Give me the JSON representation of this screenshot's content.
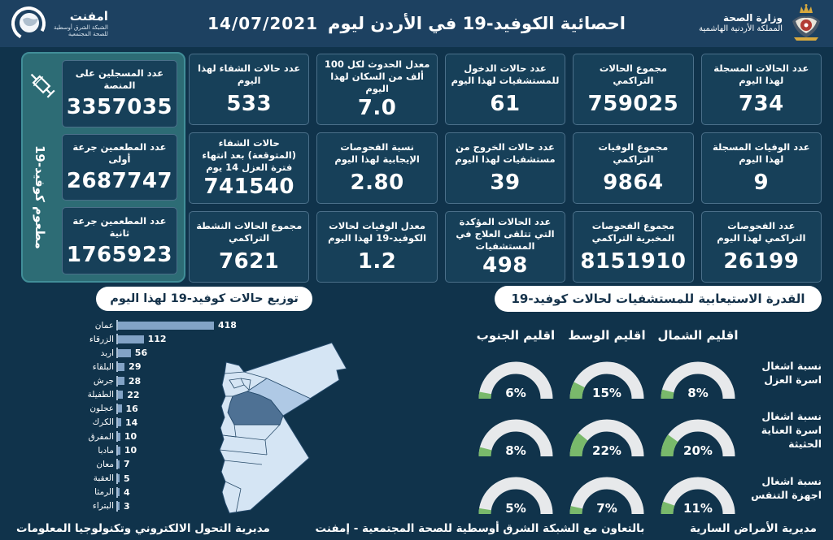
{
  "header": {
    "title": "احصائية الكوفيد-19 في الأردن ليوم",
    "date": "14/07/2021",
    "logo": {
      "name": "امفنت",
      "subtitle1": "الشبكة الشرق أوسطية",
      "subtitle2": "للصحة المجتمعية"
    },
    "ministry": {
      "line1": "وزارة الصحة",
      "line2": "المملكة الأردنية الهاشمية"
    }
  },
  "stats": [
    {
      "label": "عدد الحالات المسجلة لهذا اليوم",
      "value": "734"
    },
    {
      "label": "مجموع الحالات التراكمي",
      "value": "759025"
    },
    {
      "label": "عدد حالات الدخول للمستشفيات لهذا اليوم",
      "value": "61"
    },
    {
      "label": "معدل الحدوث لكل 100 ألف من السكان لهذا اليوم",
      "value": "7.0"
    },
    {
      "label": "عدد حالات الشفاء لهذا اليوم",
      "value": "533"
    },
    {
      "label": "عدد الوفيات المسجلة لهذا اليوم",
      "value": "9"
    },
    {
      "label": "مجموع الوفيات التراكمي",
      "value": "9864"
    },
    {
      "label": "عدد حالات الخروج من مستشفيات لهذا اليوم",
      "value": "39"
    },
    {
      "label": "نسبة الفحوصات الإيجابية لهذا اليوم",
      "value": "2.80"
    },
    {
      "label": "حالات الشفاء (المتوقعة) بعد انتهاء فترة العزل 14 يوم",
      "value": "741540"
    },
    {
      "label": "عدد الفحوصات التراكمي لهذا اليوم",
      "value": "26199"
    },
    {
      "label": "مجموع الفحوصات المخبرية التراكمي",
      "value": "8151910"
    },
    {
      "label": "عدد الحالات المؤكدة التي تتلقى العلاج في المستشفيات",
      "value": "498"
    },
    {
      "label": "معدل الوفيات لحالات الكوفيد-19 لهذا اليوم",
      "value": "1.2"
    },
    {
      "label": "مجموع الحالات النشطة التراكمي",
      "value": "7621"
    }
  ],
  "vaccination": {
    "side_label": "مطعوم كوفيد-19",
    "cards": [
      {
        "label": "عدد المسجلين على المنصة",
        "value": "3357035"
      },
      {
        "label": "عدد المطعمين جرعة أولى",
        "value": "2687747"
      },
      {
        "label": "عدد المطعمين جرعة ثانية",
        "value": "1765923"
      }
    ]
  },
  "chart_data": [
    {
      "type": "bar",
      "orientation": "horizontal",
      "title": "توزيع حالات كوفيد-19 لهذا اليوم",
      "categories": [
        "عمان",
        "الزرقاء",
        "اربد",
        "البلقاء",
        "جرش",
        "الطفيلة",
        "عجلون",
        "الكرك",
        "المفرق",
        "مادبا",
        "معان",
        "العقبة",
        "الرمثا",
        "البتراء"
      ],
      "values": [
        418,
        112,
        56,
        29,
        28,
        22,
        16,
        14,
        10,
        10,
        7,
        5,
        4,
        3
      ],
      "xlim": [
        0,
        418
      ],
      "bar_color": "#82a3c6"
    },
    {
      "type": "gauge",
      "title": "القدرة الاستيعابية للمستشفيات لحالات كوفيد-19",
      "unit": "%",
      "columns": [
        "اقليم الشمال",
        "اقليم الوسط",
        "اقليم الجنوب"
      ],
      "rows": [
        {
          "label": "نسبة اشغال اسرة العزل",
          "values": [
            8,
            15,
            6
          ]
        },
        {
          "label": "نسبة اشغال اسرة العناية الحثيثة",
          "values": [
            20,
            22,
            8
          ]
        },
        {
          "label": "نسبة اشغال اجهزة التنفس",
          "values": [
            11,
            7,
            5
          ]
        }
      ],
      "gauge_fill": "#79b96b",
      "gauge_track": "#e7e9eb"
    }
  ],
  "map": {
    "country": "الأردن",
    "highlight_dark": "عمان",
    "highlight_medium": "الزرقاء"
  },
  "footer": {
    "right": "مديرية الأمراض السارية",
    "center": "بالتعاون مع الشبكة الشرق أوسطية للصحة المجتمعية - إمفنت",
    "left": "مديرية التحول الالكتروني وتكنولوجيا المعلومات"
  },
  "colors": {
    "background": "#10334b",
    "header": "#1d4161",
    "card": "#174059",
    "panel_teal": "#2d6c75",
    "accent_green": "#79b96b",
    "gauge_track": "#e7e9eb",
    "bar": "#82a3c6",
    "map_light": "#d5e5f4",
    "map_medium": "#afc9e5",
    "map_dark": "#4e7194"
  }
}
